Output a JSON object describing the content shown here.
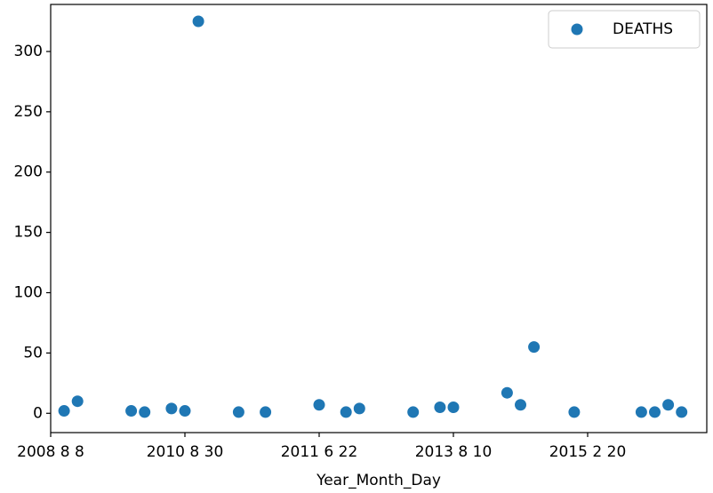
{
  "chart_data": {
    "type": "scatter",
    "x_label": "Year_Month_Day",
    "categories": [
      "2008 8 8",
      null,
      null,
      null,
      null,
      null,
      null,
      null,
      null,
      null,
      "2010 8 30",
      null,
      null,
      null,
      null,
      null,
      null,
      null,
      null,
      null,
      "2011 6 22",
      null,
      null,
      null,
      null,
      null,
      null,
      null,
      null,
      null,
      "2013 8 10",
      null,
      null,
      null,
      null,
      null,
      null,
      null,
      null,
      null,
      "2015 2 20",
      null,
      null,
      null,
      null,
      null,
      null,
      null,
      null
    ],
    "series": [
      {
        "name": "DEATHS",
        "color": "#1f77b4",
        "values": [
          null,
          2,
          10,
          null,
          null,
          null,
          2,
          1,
          null,
          4,
          2,
          325,
          null,
          null,
          1,
          null,
          1,
          null,
          null,
          null,
          7,
          null,
          1,
          4,
          null,
          null,
          null,
          1,
          null,
          5,
          5,
          null,
          null,
          null,
          17,
          7,
          55,
          null,
          null,
          1,
          null,
          null,
          null,
          null,
          1,
          1,
          7,
          1,
          null
        ]
      }
    ],
    "ylim": [
      -16,
      339
    ],
    "yticks": [
      0,
      50,
      100,
      150,
      200,
      250,
      300
    ],
    "grid": false,
    "legend": "upper right"
  }
}
